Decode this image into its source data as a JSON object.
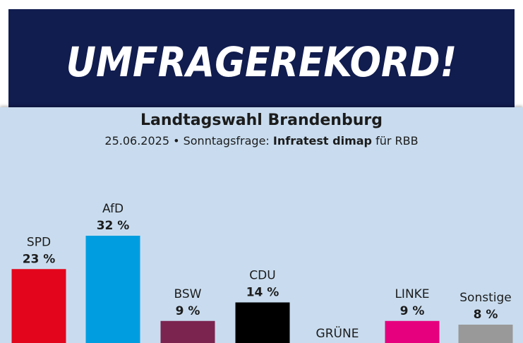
{
  "banner": {
    "title": "UMFRAGEREKORD!"
  },
  "chart_data": {
    "type": "bar",
    "title": "Landtagswahl Brandenburg",
    "subtitle_prefix": "25.06.2025 • Sonntagsfrage:",
    "subtitle_source": "Infratest dimap",
    "subtitle_suffix": "für RBB",
    "categories": [
      "SPD",
      "AfD",
      "BSW",
      "CDU",
      "GRÜNE",
      "LINKE",
      "Sonstige"
    ],
    "values": [
      23,
      32,
      9,
      14,
      null,
      9,
      8
    ],
    "value_labels": [
      "23 %",
      "32 %",
      "9 %",
      "14 %",
      "",
      "9 %",
      "8 %"
    ],
    "colors": [
      "#e3051b",
      "#009ee0",
      "#7b2450",
      "#000000",
      "#1aa037",
      "#e6007e",
      "#999999"
    ],
    "ylim": [
      0,
      32
    ],
    "legend": "none",
    "grid": false
  }
}
